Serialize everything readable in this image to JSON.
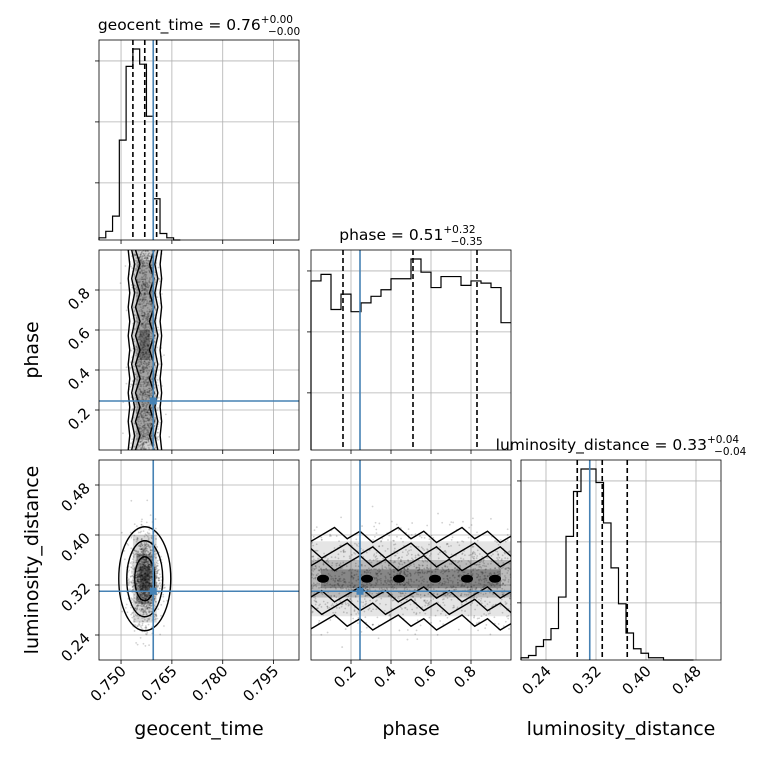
{
  "chart_data": {
    "type": "corner",
    "parameters": [
      {
        "name": "geocent_time",
        "axis_label": "geocent_time",
        "title": {
          "prefix": "geocent_time = 0.76",
          "sup": "+0.00",
          "sub": "−0.00"
        },
        "range": [
          0.7435,
          0.8025
        ],
        "ticks": [
          0.75,
          0.765,
          0.78,
          0.795
        ],
        "tick_labels": [
          "0.750",
          "0.765",
          "0.780",
          "0.795"
        ],
        "quantiles": [
          0.7535,
          0.757,
          0.7605
        ],
        "injection": 0.7595
      },
      {
        "name": "phase",
        "axis_label": "phase",
        "title": {
          "prefix": "phase = 0.51",
          "sup": "+0.32",
          "sub": "−0.35"
        },
        "range": [
          0.0,
          1.0
        ],
        "ticks": [
          0.2,
          0.4,
          0.6,
          0.8
        ],
        "tick_labels": [
          "0.2",
          "0.4",
          "0.6",
          "0.8"
        ],
        "quantiles": [
          0.16,
          0.51,
          0.83
        ],
        "injection": 0.245
      },
      {
        "name": "luminosity_distance",
        "axis_label": "luminosity_distance",
        "title": {
          "prefix": "luminosity_distance = 0.33",
          "sup": "+0.04",
          "sub": "−0.04"
        },
        "range": [
          0.2,
          0.52
        ],
        "ticks": [
          0.24,
          0.32,
          0.4,
          0.48
        ],
        "tick_labels": [
          "0.24",
          "0.32",
          "0.40",
          "0.48"
        ],
        "quantiles": [
          0.29,
          0.33,
          0.37
        ],
        "injection": 0.31
      }
    ],
    "histograms": {
      "geocent_time": {
        "bin_edges": [
          0.7435,
          0.7455,
          0.7475,
          0.7495,
          0.7515,
          0.7535,
          0.7555,
          0.7575,
          0.7595,
          0.7615,
          0.7635,
          0.7655,
          0.7675
        ],
        "counts": [
          1,
          4,
          11,
          46,
          80,
          88,
          81,
          57,
          19,
          3,
          1,
          0
        ]
      },
      "phase": {
        "bin_edges": [
          0.0,
          0.05,
          0.1,
          0.15,
          0.2,
          0.25,
          0.3,
          0.35,
          0.4,
          0.45,
          0.5,
          0.55,
          0.6,
          0.65,
          0.7,
          0.75,
          0.8,
          0.85,
          0.9,
          0.95,
          1.0
        ],
        "counts": [
          77,
          80,
          64,
          71,
          63,
          67,
          70,
          73,
          78,
          78,
          87,
          81,
          74,
          79,
          79,
          75,
          77,
          76,
          74,
          58
        ]
      },
      "luminosity_distance": {
        "bin_edges": [
          0.2,
          0.212,
          0.224,
          0.236,
          0.248,
          0.26,
          0.272,
          0.284,
          0.296,
          0.308,
          0.32,
          0.332,
          0.344,
          0.356,
          0.368,
          0.38,
          0.392,
          0.404,
          0.416,
          0.428,
          0.44,
          0.452,
          0.464,
          0.476
        ],
        "counts": [
          1,
          2,
          6,
          9,
          14,
          28,
          55,
          75,
          85,
          85,
          79,
          61,
          41,
          25,
          12,
          5,
          3,
          1,
          1,
          0,
          0,
          0,
          0
        ]
      }
    },
    "grid": true,
    "colors": {
      "truth": "#4682b4",
      "hist": "#000000",
      "quantile": "#000000",
      "contour": "#000000"
    }
  }
}
